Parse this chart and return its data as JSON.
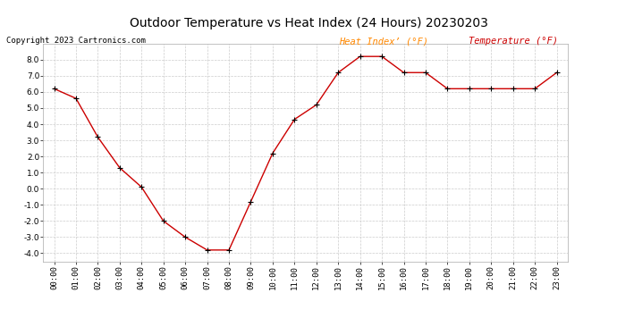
{
  "title": "Outdoor Temperature vs Heat Index (24 Hours) 20230203",
  "copyright": "Copyright 2023 Cartronics.com",
  "legend_heat_index": "Heat Index’ (°F)",
  "legend_temperature": "Temperature (°F)",
  "x_labels": [
    "00:00",
    "01:00",
    "02:00",
    "03:00",
    "04:00",
    "05:00",
    "06:00",
    "07:00",
    "08:00",
    "09:00",
    "10:00",
    "11:00",
    "12:00",
    "13:00",
    "14:00",
    "15:00",
    "16:00",
    "17:00",
    "18:00",
    "19:00",
    "20:00",
    "21:00",
    "22:00",
    "23:00"
  ],
  "temperature_y": [
    6.2,
    5.6,
    3.2,
    1.3,
    0.1,
    -2.0,
    -3.0,
    -3.8,
    -3.8,
    -0.8,
    2.2,
    4.3,
    5.2,
    7.2,
    8.2,
    8.2,
    7.2,
    7.2,
    6.2,
    6.2,
    6.2,
    6.2,
    6.2,
    7.2
  ],
  "line_color": "#cc0000",
  "marker_color": "#000000",
  "bg_color": "#ffffff",
  "grid_color": "#cccccc",
  "title_color": "#000000",
  "copyright_color": "#000000",
  "legend_heat_color": "#ff8800",
  "legend_temp_color": "#cc0000",
  "ylim": [
    -4.5,
    9.0
  ],
  "yticks": [
    -4.0,
    -3.0,
    -2.0,
    -1.0,
    0.0,
    1.0,
    2.0,
    3.0,
    4.0,
    5.0,
    6.0,
    7.0,
    8.0
  ],
  "title_fontsize": 10,
  "copyright_fontsize": 6.5,
  "legend_fontsize": 7.5,
  "tick_fontsize": 6.5
}
